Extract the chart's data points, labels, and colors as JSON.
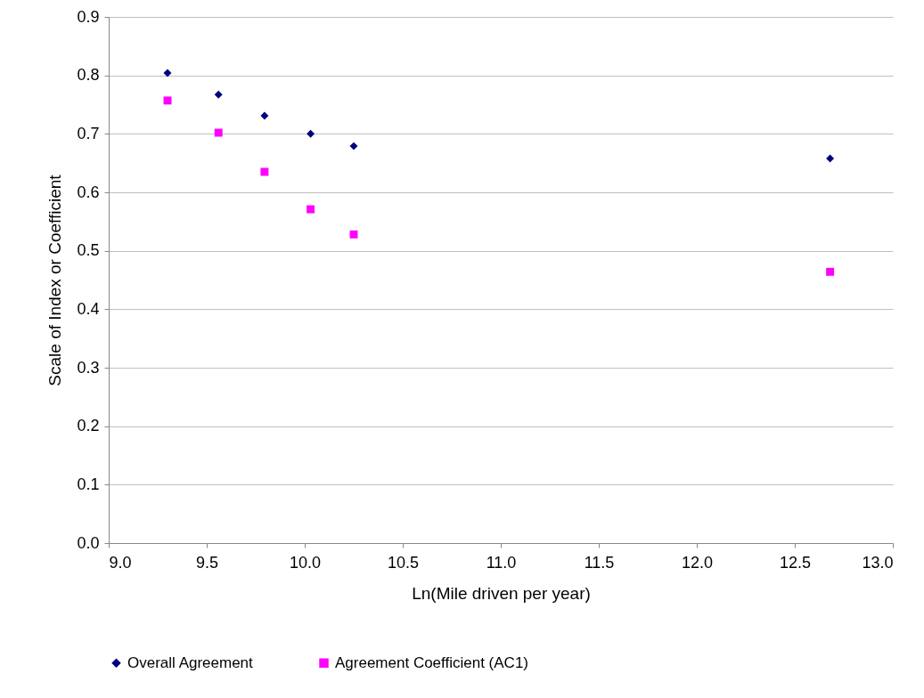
{
  "chart_data": {
    "type": "scatter",
    "xlabel": "Ln(Mile driven per year)",
    "ylabel": "Scale of Index or Coefficient",
    "xlim": [
      9,
      13
    ],
    "xticks": [
      {
        "value": 9,
        "label": "9.0"
      },
      9.5,
      {
        "value": 10,
        "label": "10.0"
      },
      10.5,
      {
        "value": 11,
        "label": "11.0"
      },
      11.5,
      {
        "value": 12,
        "label": "12.0"
      },
      12.5,
      {
        "value": 13,
        "label": "13.0"
      }
    ],
    "ylim": [
      0,
      0.9
    ],
    "yticks": [
      {
        "value": 0,
        "label": "0.0"
      },
      0.1,
      0.2,
      0.3,
      0.4,
      0.5,
      0.6,
      0.7,
      0.8,
      0.9
    ],
    "grid": "y",
    "legend": "bottom",
    "series": [
      {
        "name": "Overall Agreement",
        "color": "#000080",
        "marker": "diamond",
        "x": [
          9.3,
          9.56,
          9.795,
          10.03,
          10.25,
          12.68
        ],
        "values": [
          0.804,
          0.767,
          0.731,
          0.7,
          0.679,
          0.658
        ]
      },
      {
        "name": "Agreement Coefficient (AC1)",
        "color": "#ff00ff",
        "marker": "square",
        "x": [
          9.3,
          9.56,
          9.795,
          10.03,
          10.25,
          12.68
        ],
        "values": [
          0.757,
          0.702,
          0.635,
          0.571,
          0.528,
          0.464
        ]
      }
    ]
  }
}
